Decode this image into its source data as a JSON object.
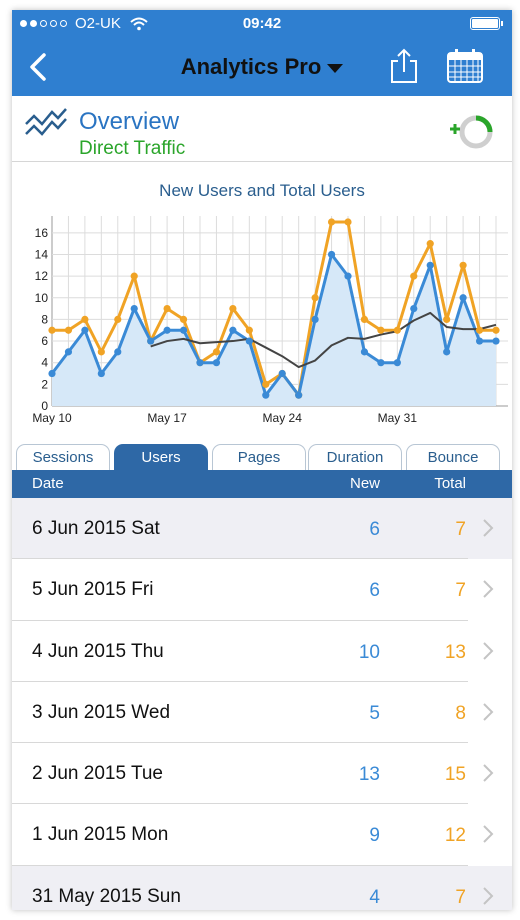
{
  "status_bar": {
    "carrier": "O2-UK",
    "time": "09:42"
  },
  "nav": {
    "title": "Analytics Pro"
  },
  "overview": {
    "title": "Overview",
    "subtitle": "Direct Traffic"
  },
  "colors": {
    "bar_blue": "#2f7fd0",
    "new_blue": "#3a8ad6",
    "total_orange": "#f0a325",
    "accent_green": "#2aa52a",
    "dark_blue": "#2e68a6"
  },
  "icons": [
    "back-chevron-icon",
    "dropdown-caret-icon",
    "share-icon",
    "calendar-icon",
    "trend-lines-icon",
    "refresh-ring-icon",
    "chevron-right-icon"
  ],
  "chart_data": {
    "type": "line",
    "title": "New Users and Total Users",
    "xlabel": "",
    "ylabel": "",
    "ylim": [
      0,
      17
    ],
    "yticks": [
      0,
      2,
      4,
      6,
      8,
      10,
      12,
      14,
      16
    ],
    "xticks": [
      {
        "label": "May 10",
        "day": 0
      },
      {
        "label": "May 17",
        "day": 7
      },
      {
        "label": "May 24",
        "day": 14
      },
      {
        "label": "May 31",
        "day": 21
      }
    ],
    "grid": true,
    "legend": "none",
    "series": [
      {
        "name": "",
        "color": "#f0a325",
        "values": [
          7,
          7,
          8,
          5,
          8,
          12,
          6,
          9,
          8,
          4,
          5,
          9,
          7,
          2,
          3,
          1,
          10,
          17,
          17,
          8,
          7,
          7,
          12,
          15,
          8,
          13,
          7,
          7
        ]
      },
      {
        "name": "",
        "color": "#3a8ad6",
        "values": [
          3,
          5,
          7,
          3,
          5,
          9,
          6,
          7,
          7,
          4,
          4,
          7,
          6,
          1,
          3,
          1,
          8,
          14,
          12,
          5,
          4,
          4,
          9,
          13,
          5,
          10,
          6,
          6
        ]
      },
      {
        "name": "",
        "color": "#444444",
        "values": [
          null,
          null,
          null,
          null,
          null,
          null,
          5.5,
          6,
          6.2,
          5.8,
          5.9,
          6,
          6.2,
          5.4,
          4.6,
          3.6,
          4.2,
          5.6,
          6.3,
          6.2,
          6.6,
          6.9,
          7.9,
          8.6,
          7.3,
          7.1,
          7.1,
          7.5
        ]
      }
    ]
  },
  "tabs": [
    {
      "label": "Sessions",
      "active": false
    },
    {
      "label": "Users",
      "active": true
    },
    {
      "label": "Pages",
      "active": false
    },
    {
      "label": "Duration",
      "active": false
    },
    {
      "label": "Bounce",
      "active": false
    }
  ],
  "table": {
    "headers": {
      "date": "Date",
      "new": "New",
      "total": "Total"
    },
    "rows": [
      {
        "date": "6 Jun 2015 Sat",
        "new": "6",
        "total": "7"
      },
      {
        "date": "5 Jun 2015 Fri",
        "new": "6",
        "total": "7"
      },
      {
        "date": "4 Jun 2015 Thu",
        "new": "10",
        "total": "13"
      },
      {
        "date": "3 Jun 2015 Wed",
        "new": "5",
        "total": "8"
      },
      {
        "date": "2 Jun 2015 Tue",
        "new": "13",
        "total": "15"
      },
      {
        "date": "1 Jun 2015 Mon",
        "new": "9",
        "total": "12"
      },
      {
        "date": "31 May 2015 Sun",
        "new": "4",
        "total": "7"
      }
    ]
  }
}
